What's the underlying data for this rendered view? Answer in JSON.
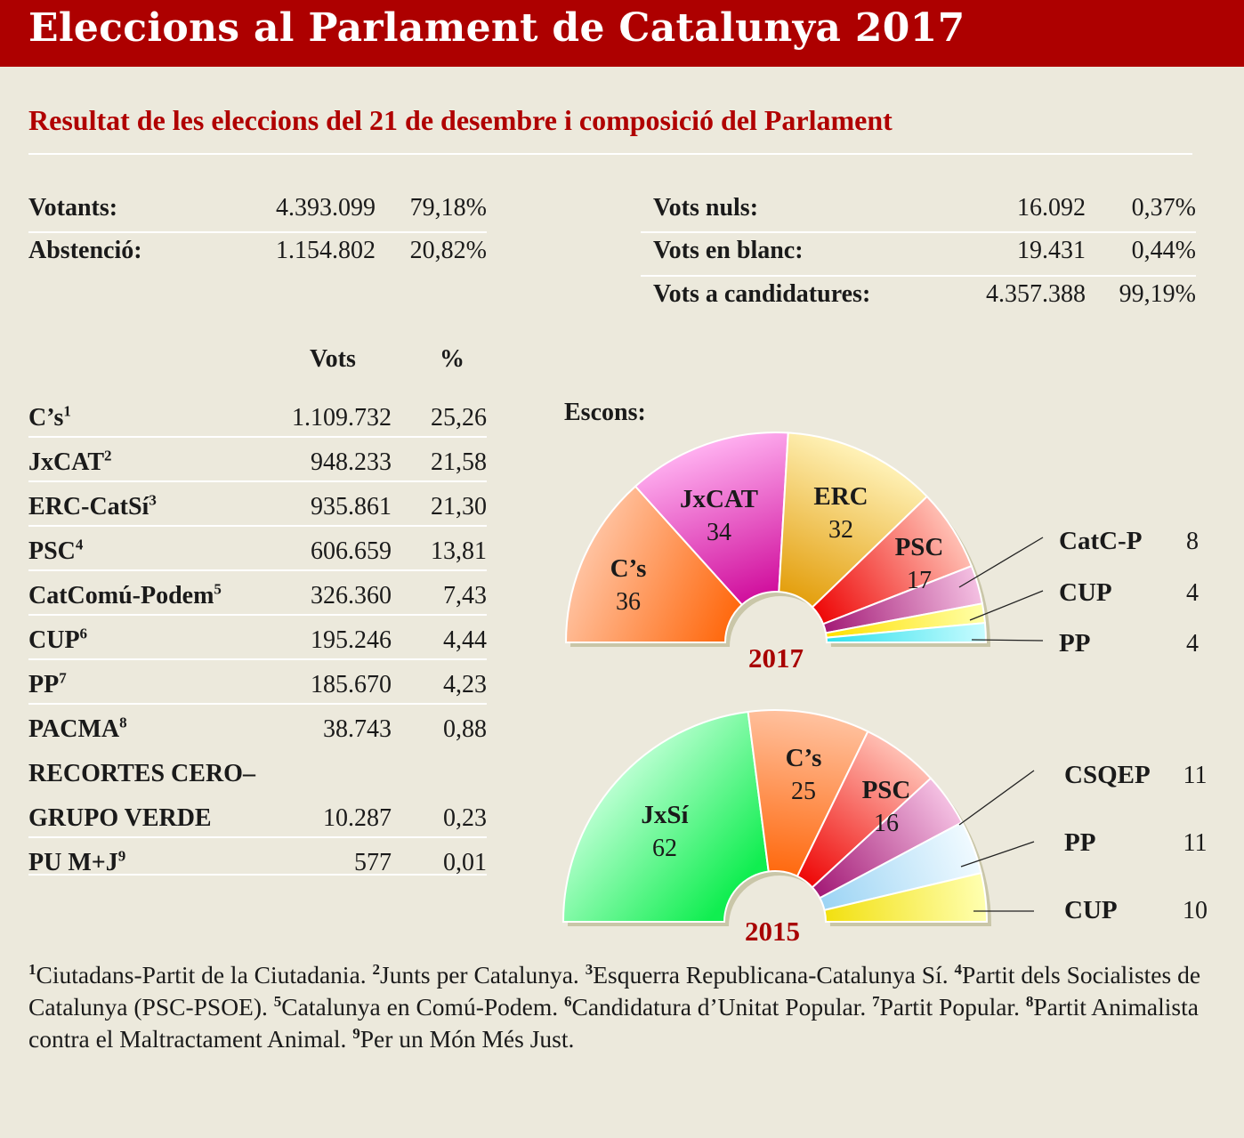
{
  "title": "Eleccions al Parlament de Catalunya 2017",
  "subtitle": "Resultat de les eleccions del 21 de desembre i composició del Parlament",
  "summary_left": [
    {
      "label": "Votants:",
      "value": "4.393.099",
      "pct": "79,18%"
    },
    {
      "label": "Abstenció:",
      "value": "1.154.802",
      "pct": "20,82%"
    }
  ],
  "summary_right": [
    {
      "label": "Vots nuls:",
      "value": "16.092",
      "pct": "0,37%"
    },
    {
      "label": "Vots en blanc:",
      "value": "19.431",
      "pct": "0,44%"
    },
    {
      "label": "Vots a candidatures:",
      "value": "4.357.388",
      "pct": "99,19%"
    }
  ],
  "results_header": {
    "votes": "Vots",
    "pct": "%"
  },
  "results": [
    {
      "party": "C’s",
      "note": "1",
      "votes": "1.109.732",
      "pct": "25,26"
    },
    {
      "party": "JxCAT",
      "note": "2",
      "votes": "948.233",
      "pct": "21,58"
    },
    {
      "party": "ERC-CatSí",
      "note": "3",
      "votes": "935.861",
      "pct": "21,30"
    },
    {
      "party": "PSC",
      "note": "4",
      "votes": "606.659",
      "pct": "13,81"
    },
    {
      "party": "CatComú-Podem",
      "note": "5",
      "votes": "326.360",
      "pct": "7,43"
    },
    {
      "party": "CUP",
      "note": "6",
      "votes": "195.246",
      "pct": "4,44"
    },
    {
      "party": "PP",
      "note": "7",
      "votes": "185.670",
      "pct": "4,23"
    },
    {
      "party": "PACMA",
      "note": "8",
      "votes": "38.743",
      "pct": "0,88"
    },
    {
      "party": "RECORTES CERO–",
      "party2": "GRUPO VERDE",
      "note": "",
      "votes": "10.287",
      "pct": "0,23"
    },
    {
      "party": "PU M+J",
      "note": "9",
      "votes": "577",
      "pct": "0,01"
    }
  ],
  "seats_label": "Escons:",
  "chart_data": [
    {
      "type": "pie",
      "subtype": "parliament-semicircle",
      "title": "2017",
      "categories": [
        "C’s",
        "JxCAT",
        "ERC",
        "PSC",
        "CatC-P",
        "CUP",
        "PP"
      ],
      "values": [
        36,
        34,
        32,
        17,
        8,
        4,
        4
      ],
      "colors": [
        [
          "#ff6a10",
          "#ffc2a0"
        ],
        [
          "#d1119e",
          "#ffb0f0"
        ],
        [
          "#e4a010",
          "#fff2b8"
        ],
        [
          "#ee0808",
          "#ffc0b4"
        ],
        [
          "#a31a76",
          "#f4c0e2"
        ],
        [
          "#ffe000",
          "#ffffa8"
        ],
        [
          "#30e0ec",
          "#c8fcff"
        ]
      ],
      "outside_labels": [
        {
          "name": "CatC-P",
          "value": "8"
        },
        {
          "name": "CUP",
          "value": "4"
        },
        {
          "name": "PP",
          "value": "4"
        }
      ]
    },
    {
      "type": "pie",
      "subtype": "parliament-semicircle",
      "title": "2015",
      "categories": [
        "JxSí",
        "C’s",
        "PSC",
        "CSQEP",
        "PP",
        "CUP"
      ],
      "values": [
        62,
        25,
        16,
        11,
        11,
        10
      ],
      "colors": [
        [
          "#10ee50",
          "#b8ffd0"
        ],
        [
          "#ff6a10",
          "#ffc2a0"
        ],
        [
          "#ee0808",
          "#ffc0b4"
        ],
        [
          "#a31a76",
          "#f4c0e2"
        ],
        [
          "#9cd4f4",
          "#f0faff"
        ],
        [
          "#f2e010",
          "#ffffb0"
        ]
      ],
      "outside_labels": [
        {
          "name": "CSQEP",
          "value": "11"
        },
        {
          "name": "PP",
          "value": "11"
        },
        {
          "name": "CUP",
          "value": "10"
        }
      ]
    }
  ],
  "footnotes": [
    {
      "n": "1",
      "text": "Ciutadans-Partit de la Ciutadania. "
    },
    {
      "n": "2",
      "text": "Junts per Catalunya. "
    },
    {
      "n": "3",
      "text": "Esquerra Republicana-Catalunya Sí. "
    },
    {
      "n": "4",
      "text": "Partit dels Socialistes de Catalunya (PSC-PSOE). "
    },
    {
      "n": "5",
      "text": "Catalunya en Comú-Podem. "
    },
    {
      "n": "6",
      "text": "Candidatura d’Unitat Popular. "
    },
    {
      "n": "7",
      "text": "Partit Popular. "
    },
    {
      "n": "8",
      "text": "Partit Animalista contra el Maltractament Animal. "
    },
    {
      "n": "9",
      "text": "Per un Món Més Just."
    }
  ]
}
